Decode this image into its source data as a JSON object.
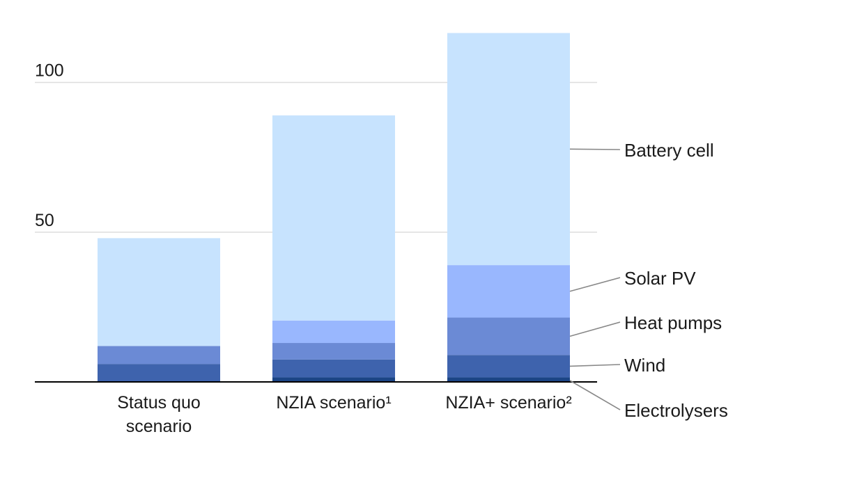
{
  "chart_data": {
    "type": "bar",
    "stacked": true,
    "title": "",
    "xlabel": "",
    "ylabel": "",
    "ylim": [
      0,
      115
    ],
    "yticks": [
      50,
      100
    ],
    "ytick_labels": [
      "50",
      "100"
    ],
    "grid": true,
    "categories": [
      [
        "Status quo",
        "scenario"
      ],
      [
        "NZIA scenario¹"
      ],
      [
        "NZIA+ scenario²"
      ]
    ],
    "series": [
      {
        "name": "Electrolysers",
        "color": "#1b4585",
        "values": [
          0,
          1.5,
          1.5
        ]
      },
      {
        "name": "Wind",
        "color": "#3e63ad",
        "values": [
          6,
          6,
          7.5
        ]
      },
      {
        "name": "Heat pumps",
        "color": "#6b8ad5",
        "values": [
          6,
          5.5,
          12.5
        ]
      },
      {
        "name": "Solar PV",
        "color": "#99b7fe",
        "values": [
          0,
          7.5,
          17.5
        ]
      },
      {
        "name": "Battery cell",
        "color": "#c7e3fe",
        "values": [
          36,
          68.5,
          77.5
        ]
      }
    ],
    "legend_placement": "right, labels beside top bar segments"
  }
}
